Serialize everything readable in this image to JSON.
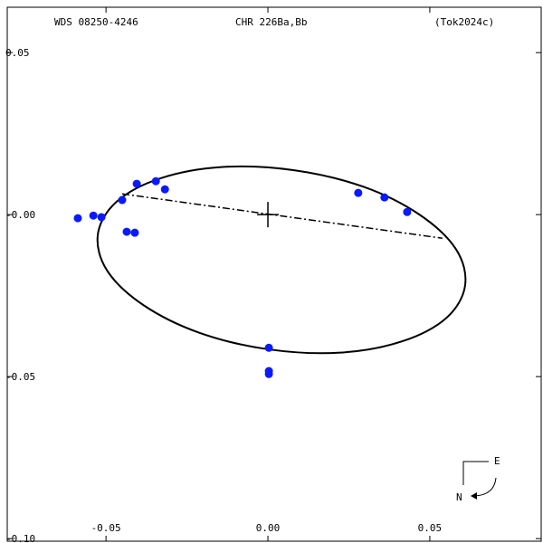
{
  "chart_data": {
    "type": "orbit",
    "header_left": "WDS 08250-4246",
    "title": "CHR 226Ba,Bb",
    "reference": "(Tok2024c)",
    "compass": {
      "east": "E",
      "north": "N"
    },
    "xlim": [
      -0.0805,
      0.0844
    ],
    "ylim": [
      -0.1008,
      0.064
    ],
    "xticks": [
      -0.05,
      {
        "value": 0,
        "label": "0.00"
      },
      0.05
    ],
    "yticks": [
      0.05,
      {
        "value": 0,
        "label": "-0.00"
      },
      -0.05,
      {
        "value": -0.1,
        "label": "-0.10"
      }
    ],
    "points": {
      "color": "#0a1aff",
      "x": [
        -0.0587,
        -0.0539,
        -0.0514,
        -0.045,
        -0.0405,
        -0.0346,
        -0.0318,
        -0.0436,
        -0.0411,
        0.0279,
        0.036,
        0.043,
        0.0003,
        0.0003,
        0.0003
      ],
      "y": [
        -0.0011,
        -0.0003,
        -0.0008,
        0.0045,
        0.0095,
        0.0103,
        0.0078,
        -0.0053,
        -0.0056,
        0.0067,
        0.0053,
        0.0008,
        -0.0411,
        -0.0483,
        -0.0492
      ]
    },
    "orbit": {
      "color": "#000000",
      "x": [
        0.0609,
        0.0551,
        0.0415,
        0.0224,
        0.0003,
        -0.0211,
        -0.0385,
        -0.0497,
        -0.0525,
        -0.0467,
        -0.0332,
        -0.014,
        0.0081,
        0.0295,
        0.0468,
        0.0581
      ],
      "y": [
        -0.0219,
        -0.0319,
        -0.0391,
        -0.0426,
        -0.0416,
        -0.0365,
        -0.0279,
        -0.0172,
        -0.006,
        0.004,
        0.0112,
        0.0147,
        0.0137,
        0.0086,
        0.0,
        -0.0107
      ]
    },
    "node_line": {
      "color": "#000000",
      "x": [
        -0.045,
        0.0539
      ],
      "y": [
        0.0064,
        -0.0073
      ]
    }
  }
}
